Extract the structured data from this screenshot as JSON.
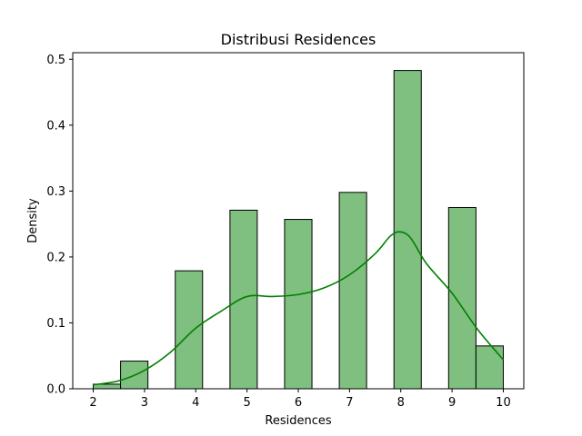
{
  "chart_data": {
    "type": "bar",
    "title": "Distribusi Residences",
    "xlabel": "Residences",
    "ylabel": "Density",
    "xlim": [
      1.6,
      10.4
    ],
    "ylim": [
      0,
      0.51
    ],
    "xticks": [
      "2",
      "3",
      "4",
      "5",
      "6",
      "7",
      "8",
      "9",
      "10"
    ],
    "yticks": [
      "0.0",
      "0.1",
      "0.2",
      "0.3",
      "0.4",
      "0.5"
    ],
    "bins": [
      {
        "x0": 2.0,
        "x1": 2.533,
        "value": 0.007
      },
      {
        "x0": 2.533,
        "x1": 3.067,
        "value": 0.042
      },
      {
        "x0": 3.6,
        "x1": 4.133,
        "value": 0.179
      },
      {
        "x0": 4.667,
        "x1": 5.2,
        "value": 0.271
      },
      {
        "x0": 5.733,
        "x1": 6.267,
        "value": 0.257
      },
      {
        "x0": 6.8,
        "x1": 7.333,
        "value": 0.298
      },
      {
        "x0": 7.867,
        "x1": 8.4,
        "value": 0.483
      },
      {
        "x0": 8.933,
        "x1": 9.467,
        "value": 0.275
      },
      {
        "x0": 9.467,
        "x1": 10.0,
        "value": 0.065
      }
    ],
    "kde": {
      "x": [
        2.0,
        2.5,
        3.0,
        3.5,
        4.0,
        4.5,
        5.0,
        5.5,
        6.0,
        6.5,
        7.0,
        7.5,
        7.8,
        8.0,
        8.2,
        8.5,
        9.0,
        9.5,
        10.0
      ],
      "y": [
        0.006,
        0.012,
        0.028,
        0.055,
        0.092,
        0.118,
        0.14,
        0.14,
        0.143,
        0.153,
        0.173,
        0.205,
        0.232,
        0.238,
        0.228,
        0.19,
        0.145,
        0.09,
        0.044
      ]
    },
    "grid": false,
    "colors": {
      "bar_fill": "#7fbf7f",
      "bar_edge": "#000000",
      "kde_line": "#008000"
    }
  }
}
